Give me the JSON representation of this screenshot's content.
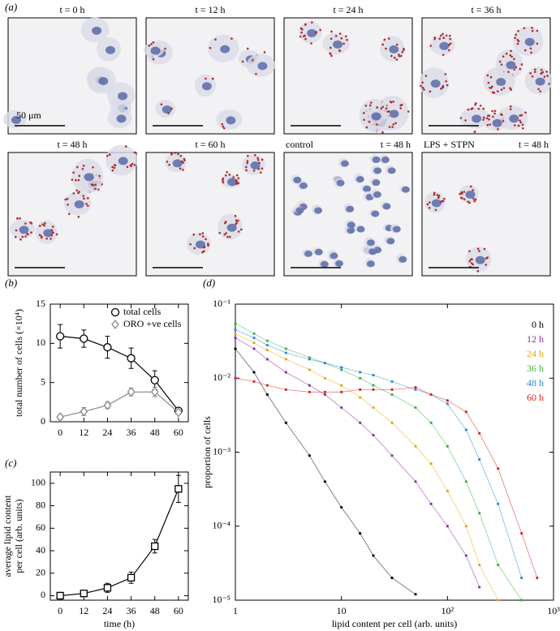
{
  "panel_a": {
    "panel_label": "(a)",
    "images": [
      {
        "title": "t = 0 h",
        "scale_label": "50 μm"
      },
      {
        "title": "t = 12 h"
      },
      {
        "title": "t = 24 h"
      },
      {
        "title": "t = 36 h"
      },
      {
        "title": "t = 48 h"
      },
      {
        "title": "t = 60 h"
      },
      {
        "label_left": "control",
        "label_right": "t = 48 h"
      },
      {
        "label_left": "LPS + STPN",
        "label_right": "t = 48 h"
      }
    ]
  },
  "chart_data": [
    {
      "type": "line",
      "panel_label": "(b)",
      "ylabel": "total number of cells (×10⁴)",
      "x": [
        0,
        12,
        24,
        36,
        48,
        60
      ],
      "xlim": [
        -5,
        65
      ],
      "xticks": [
        0,
        12,
        24,
        36,
        48,
        60
      ],
      "ylim": [
        0,
        15
      ],
      "yticks": [
        0,
        5,
        10,
        15
      ],
      "legend": "upper right",
      "series": [
        {
          "name": "total cells",
          "color": "#000000",
          "marker": "circle",
          "values": [
            10.9,
            10.6,
            9.5,
            8.1,
            5.3,
            1.4
          ],
          "errors": [
            1.5,
            1.1,
            1.4,
            1.3,
            1.2,
            0.3
          ]
        },
        {
          "name": "ORO +ve cells",
          "color": "#888888",
          "marker": "diamond",
          "values": [
            0.6,
            1.3,
            2.1,
            3.8,
            3.8,
            1.2
          ],
          "errors": [
            0.3,
            0.5,
            0.4,
            0.5,
            0.6,
            0.2
          ]
        }
      ]
    },
    {
      "type": "line",
      "panel_label": "(c)",
      "xlabel": "time (h)",
      "ylabel": [
        "average lipid content",
        "per cell (arb. units)"
      ],
      "x": [
        0,
        12,
        24,
        36,
        48,
        60
      ],
      "xlim": [
        -5,
        65
      ],
      "xticks": [
        0,
        12,
        24,
        36,
        48,
        60
      ],
      "ylim": [
        -4,
        110
      ],
      "yticks": [
        0,
        20,
        40,
        60,
        80,
        100
      ],
      "series": [
        {
          "color": "#000000",
          "marker": "square",
          "values": [
            0,
            2,
            7,
            16,
            44,
            95
          ],
          "errors": [
            3,
            2,
            4,
            5,
            6,
            12
          ]
        }
      ]
    },
    {
      "type": "line",
      "panel_label": "(d)",
      "log": true,
      "xlabel": "lipid content per cell (arb. units)",
      "ylabel": "proportion of cells",
      "x": [
        1,
        1.5,
        2,
        3,
        5,
        7,
        10,
        15,
        20,
        30,
        50,
        70,
        100,
        150,
        200,
        300,
        500,
        700,
        1000
      ],
      "xlim": [
        1,
        1000
      ],
      "xticks": [
        1,
        10,
        {
          "value": 100,
          "label": "10²"
        },
        {
          "value": 1000,
          "label": "10³"
        }
      ],
      "ylim": [
        1e-05,
        0.1
      ],
      "yticks": [
        {
          "value": 1e-05,
          "label": "10⁻⁵"
        },
        {
          "value": 0.0001,
          "label": "10⁻⁴"
        },
        {
          "value": 0.001,
          "label": "10⁻³"
        },
        {
          "value": 0.01,
          "label": "10⁻²"
        },
        {
          "value": 0.1,
          "label": "10⁻¹"
        }
      ],
      "legend": "upper right",
      "series": [
        {
          "name": "0 h",
          "color": "#000000",
          "marker": "dot",
          "values": [
            0.025,
            0.012,
            0.006,
            0.0025,
            0.0009,
            0.0004,
            0.00018,
            8e-05,
            4e-05,
            2e-05,
            1.2e-05,
            null,
            null,
            null,
            null,
            null,
            null,
            null,
            null
          ]
        },
        {
          "name": "12 h",
          "color": "#8b2f9e",
          "marker": "dot",
          "values": [
            0.035,
            0.025,
            0.018,
            0.012,
            0.008,
            0.006,
            0.004,
            0.0025,
            0.0017,
            0.0009,
            0.0004,
            0.0002,
            0.0001,
            4e-05,
            1.5e-05,
            null,
            null,
            null,
            null
          ]
        },
        {
          "name": "24 h",
          "color": "#e8a317",
          "marker": "dot",
          "values": [
            0.04,
            0.03,
            0.024,
            0.018,
            0.013,
            0.01,
            0.008,
            0.0055,
            0.004,
            0.0025,
            0.0012,
            0.0007,
            0.0003,
            0.0001,
            3e-05,
            1e-05,
            null,
            null,
            null
          ]
        },
        {
          "name": "36 h",
          "color": "#3cb043",
          "marker": "dot",
          "values": [
            0.055,
            0.04,
            0.032,
            0.025,
            0.019,
            0.016,
            0.013,
            0.01,
            0.008,
            0.006,
            0.004,
            0.0025,
            0.0012,
            0.0004,
            0.00015,
            3e-05,
            1e-05,
            null,
            null
          ]
        },
        {
          "name": "48 h",
          "color": "#2a8ad4",
          "marker": "dot",
          "values": [
            0.045,
            0.035,
            0.028,
            0.022,
            0.018,
            0.016,
            0.014,
            0.012,
            0.011,
            0.009,
            0.007,
            0.006,
            0.0045,
            0.002,
            0.0008,
            0.0002,
            2e-05,
            null,
            null
          ]
        },
        {
          "name": "60 h",
          "color": "#e02020",
          "marker": "dot",
          "values": [
            0.01,
            0.009,
            0.008,
            0.007,
            0.0065,
            0.0065,
            0.0065,
            0.007,
            0.007,
            0.007,
            0.0075,
            0.006,
            0.005,
            0.0035,
            0.0018,
            0.0006,
            8e-05,
            2e-05,
            null
          ]
        }
      ]
    }
  ]
}
